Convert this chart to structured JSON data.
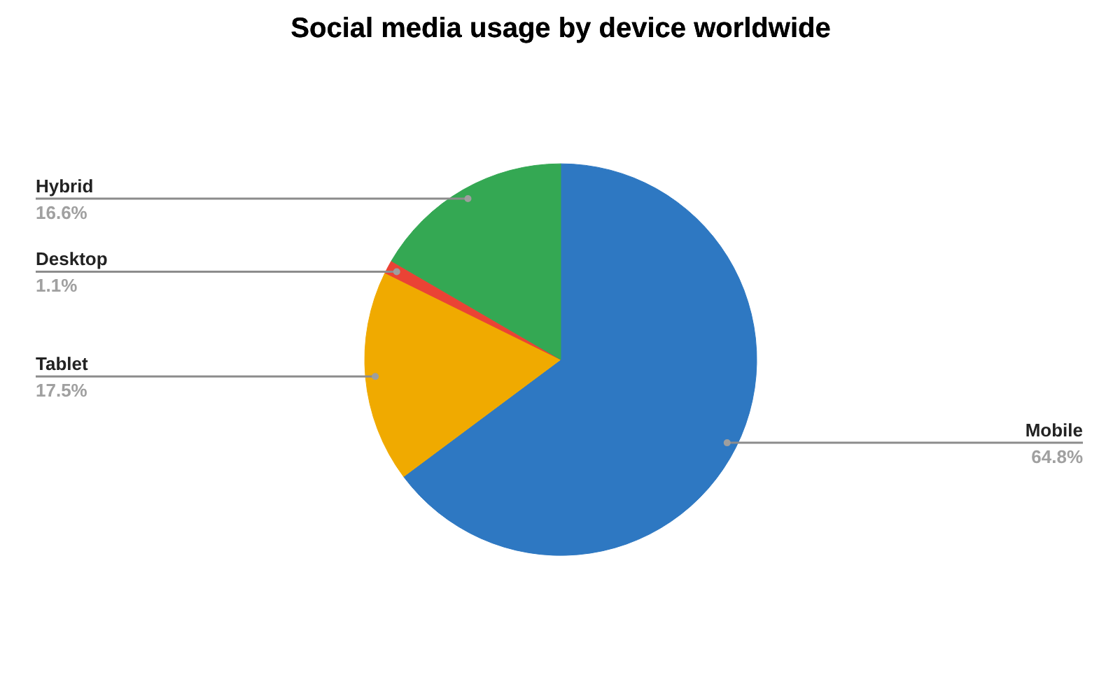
{
  "chart_data": {
    "type": "pie",
    "title": "Social media usage by device worldwide",
    "categories": [
      "Mobile",
      "Tablet",
      "Desktop",
      "Hybrid"
    ],
    "values": [
      64.8,
      17.5,
      1.1,
      16.6
    ],
    "colors": [
      "#2e78c2",
      "#f0aa00",
      "#ea4335",
      "#34a853"
    ],
    "value_labels": [
      "64.8%",
      "17.5%",
      "1.1%",
      "16.6%"
    ]
  }
}
